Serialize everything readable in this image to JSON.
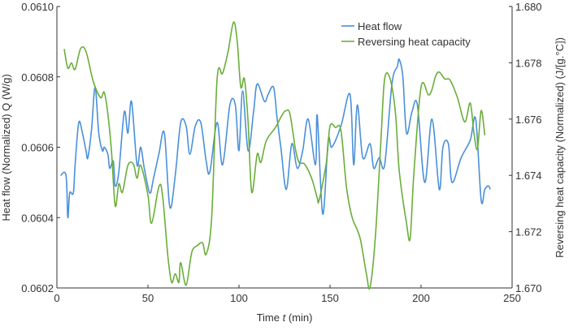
{
  "chart_data": {
    "type": "line",
    "title": "",
    "xlabel": "Time t (min)",
    "xlabel_parts": [
      "Time ",
      "t",
      " (min)"
    ],
    "ylabel": "Heat flow (Normalized) Q (W/g)",
    "y2label": "Reversing heat capacity (Normalized) (J/[g.°C])",
    "xlim": [
      0,
      250
    ],
    "ylim": [
      0.0602,
      0.061
    ],
    "y2lim": [
      1.67,
      1.68
    ],
    "xticks": [
      "0",
      "50",
      "100",
      "150",
      "200",
      "250"
    ],
    "yticks": [
      "0.0602",
      "0.0604",
      "0.0606",
      "0.0608",
      "0.0610"
    ],
    "y2ticks": [
      "1.670",
      "1.672",
      "1.674",
      "1.676",
      "1.678",
      "1.680"
    ],
    "grid": false,
    "legend_position": "top-right",
    "series": [
      {
        "name": "Heat flow",
        "axis": "left",
        "color": "#4a90d9",
        "x": [
          2,
          5,
          6,
          7,
          9,
          10,
          12,
          14,
          16,
          17,
          19,
          21,
          23,
          25,
          26,
          28,
          29,
          31,
          32,
          34,
          37,
          39,
          41,
          44,
          46,
          48,
          51,
          53,
          56,
          59,
          62,
          65,
          68,
          71,
          73,
          76,
          79,
          82,
          84,
          88,
          91,
          95,
          98,
          100,
          102,
          105,
          108,
          110,
          114,
          116,
          119,
          121,
          123,
          126,
          129,
          132,
          135,
          138,
          142,
          143,
          146,
          149,
          151,
          156,
          161,
          163,
          165,
          168,
          172,
          174,
          177,
          180,
          184,
          187,
          188,
          190,
          192,
          195,
          198,
          202,
          206,
          210,
          212,
          215,
          217,
          222,
          227,
          230,
          233,
          235,
          237,
          238
        ],
        "y": [
          0.06052,
          0.06052,
          0.0604,
          0.06047,
          0.06047,
          0.06055,
          0.06067,
          0.06064,
          0.06059,
          0.06057,
          0.06065,
          0.06077,
          0.06064,
          0.06059,
          0.0606,
          0.06058,
          0.06054,
          0.06056,
          0.06049,
          0.06053,
          0.0607,
          0.06064,
          0.06073,
          0.06055,
          0.0606,
          0.06054,
          0.06047,
          0.06051,
          0.06058,
          0.06064,
          0.06043,
          0.06052,
          0.06067,
          0.06066,
          0.06058,
          0.06066,
          0.06067,
          0.06056,
          0.06053,
          0.06067,
          0.06055,
          0.06072,
          0.06072,
          0.06059,
          0.06076,
          0.06059,
          0.0607,
          0.06078,
          0.06073,
          0.06075,
          0.06077,
          0.06068,
          0.0606,
          0.06048,
          0.06061,
          0.06054,
          0.06059,
          0.06068,
          0.06055,
          0.06069,
          0.06041,
          0.06062,
          0.0606,
          0.06066,
          0.06075,
          0.06055,
          0.06072,
          0.06057,
          0.06061,
          0.06054,
          0.06057,
          0.06055,
          0.06078,
          0.06083,
          0.06085,
          0.0608,
          0.06064,
          0.0607,
          0.06072,
          0.0605,
          0.06068,
          0.06048,
          0.0606,
          0.06061,
          0.0605,
          0.06057,
          0.06062,
          0.06068,
          0.06045,
          0.06048,
          0.06049,
          0.06048
        ]
      },
      {
        "name": "Reversing heat capacity",
        "axis": "right",
        "color": "#6aae3a",
        "x": [
          4,
          6,
          8,
          10,
          13,
          16,
          20,
          24,
          26,
          28,
          30,
          32,
          34,
          36,
          39,
          42,
          44,
          46,
          50,
          52,
          56,
          58,
          61,
          63,
          65,
          67,
          68,
          71,
          74,
          77,
          80,
          82,
          85,
          88,
          91,
          94,
          97,
          99,
          101,
          103,
          105,
          107,
          110,
          112,
          115,
          120,
          124,
          126,
          128,
          131,
          133,
          136,
          140,
          143,
          144,
          148,
          150,
          153,
          156,
          159,
          162,
          165,
          167,
          170,
          172,
          175,
          178,
          180,
          183,
          186,
          188,
          192,
          194,
          196,
          200,
          204,
          206,
          208,
          210,
          213,
          216,
          220,
          224,
          227,
          229,
          231,
          233,
          235
        ],
        "y": [
          1.67849,
          1.67781,
          1.678,
          1.67777,
          1.6785,
          1.6784,
          1.67733,
          1.67676,
          1.67695,
          1.67618,
          1.67484,
          1.67292,
          1.6737,
          1.6734,
          1.67436,
          1.6744,
          1.6739,
          1.67436,
          1.6733,
          1.6723,
          1.67359,
          1.6733,
          1.6711,
          1.6702,
          1.6705,
          1.6702,
          1.6709,
          1.6701,
          1.67125,
          1.6715,
          1.6716,
          1.6712,
          1.6725,
          1.67743,
          1.67762,
          1.6784,
          1.67944,
          1.67877,
          1.67714,
          1.67743,
          1.6759,
          1.6734,
          1.67475,
          1.67446,
          1.67523,
          1.6757,
          1.67618,
          1.6763,
          1.67618,
          1.67494,
          1.67446,
          1.6744,
          1.67388,
          1.6732,
          1.67312,
          1.67446,
          1.67575,
          1.6757,
          1.6756,
          1.6736,
          1.67254,
          1.67206,
          1.67163,
          1.6705,
          1.67003,
          1.6719,
          1.6753,
          1.67743,
          1.67743,
          1.67618,
          1.67417,
          1.6723,
          1.67177,
          1.674,
          1.67714,
          1.67686,
          1.67705,
          1.67753,
          1.67767,
          1.67743,
          1.67738,
          1.67676,
          1.6759,
          1.67657,
          1.67551,
          1.67494,
          1.6763,
          1.67542
        ]
      }
    ]
  }
}
